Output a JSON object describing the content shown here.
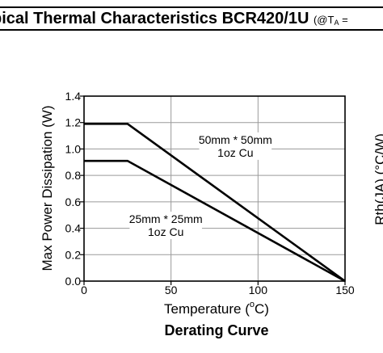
{
  "header": {
    "title": "pical Thermal Characteristics BCR420/1U",
    "condition_prefix": "(@T",
    "condition_sub": "A",
    "condition_suffix": " ="
  },
  "chart_data": {
    "type": "line",
    "title": "Derating Curve",
    "xlabel_main": "Temperature (",
    "xlabel_degree": "o",
    "xlabel_unit": "C)",
    "ylabel": "Max Power Dissipation (W)",
    "xlim": [
      0,
      150
    ],
    "ylim": [
      0,
      1.4
    ],
    "x_ticks": [
      "0",
      "50",
      "100",
      "150"
    ],
    "x_tick_values": [
      0,
      50,
      100,
      150
    ],
    "y_ticks": [
      "0.0",
      "0.2",
      "0.4",
      "0.6",
      "0.8",
      "1.0",
      "1.2",
      "1.4"
    ],
    "y_tick_values": [
      0,
      0.2,
      0.4,
      0.6,
      0.8,
      1.0,
      1.2,
      1.4
    ],
    "grid": true,
    "series": [
      {
        "label_lines": [
          "50mm * 50mm",
          "1oz Cu"
        ],
        "x": [
          0,
          25,
          150
        ],
        "y": [
          1.19,
          1.19,
          0.0
        ]
      },
      {
        "label_lines": [
          "25mm * 25mm",
          "1oz Cu"
        ],
        "x": [
          0,
          25,
          150
        ],
        "y": [
          0.91,
          0.91,
          0.0
        ]
      }
    ],
    "right_partial_axis_label": "Rth(JA) (°C/W)"
  }
}
